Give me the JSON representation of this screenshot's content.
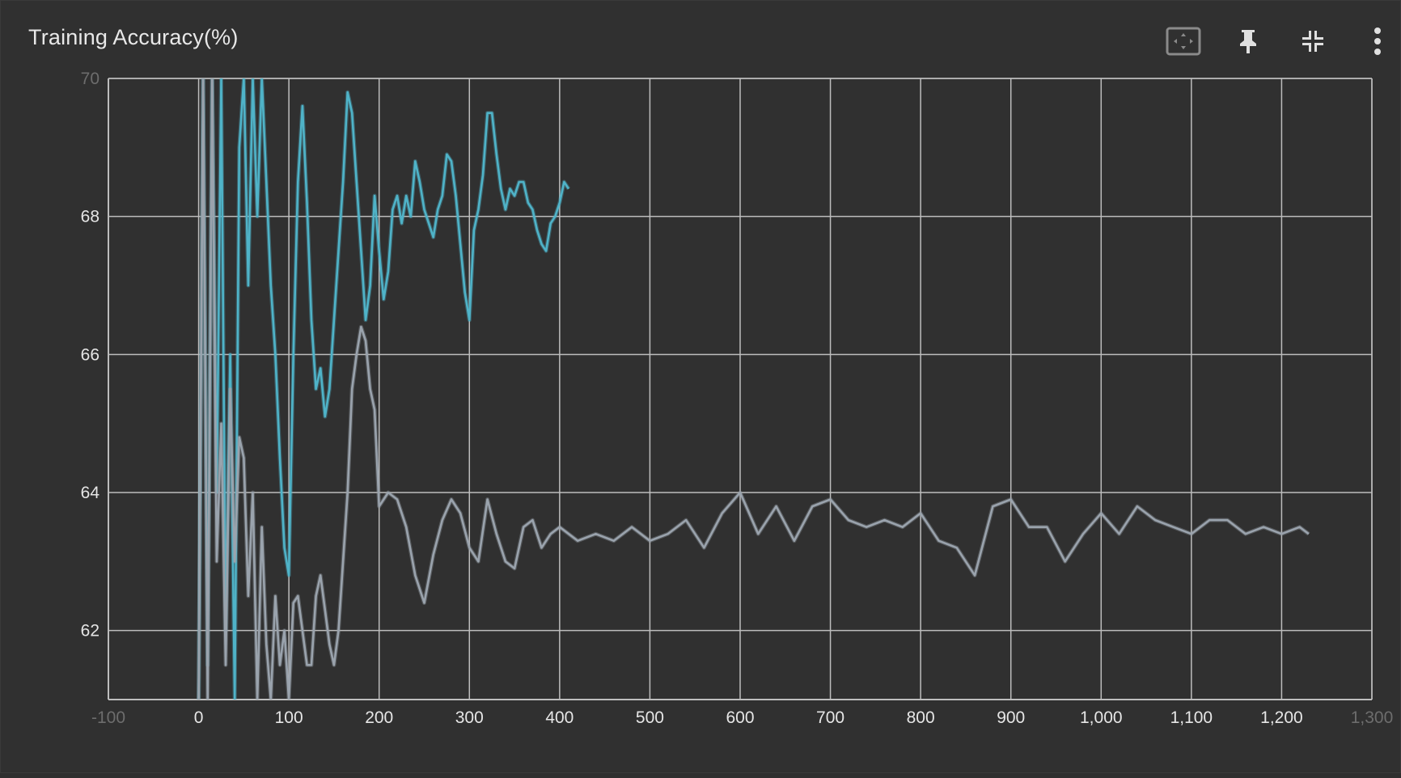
{
  "card": {
    "title": "Training Accuracy(%)",
    "toolbar": [
      {
        "name": "fit-domain-icon",
        "label": "Fit domain to data"
      },
      {
        "name": "pin-icon",
        "label": "Pin card"
      },
      {
        "name": "collapse-icon",
        "label": "Exit fullscreen"
      },
      {
        "name": "more-vert-icon",
        "label": "More actions"
      }
    ]
  },
  "colors": {
    "background": "#303030",
    "grid": "#bdbdbd",
    "series_cyan": "#4fb3c8",
    "series_gray": "#9aa3ad"
  },
  "chart_data": {
    "type": "line",
    "title": "Training Accuracy(%)",
    "xlabel": "",
    "ylabel": "",
    "xlim": [
      -100,
      1300
    ],
    "ylim": [
      61,
      70
    ],
    "grid": true,
    "x_ticks": [
      -100,
      0,
      100,
      200,
      300,
      400,
      500,
      600,
      700,
      800,
      900,
      1000,
      1100,
      1200,
      1300
    ],
    "x_tick_labels": [
      "-100",
      "0",
      "100",
      "200",
      "300",
      "400",
      "500",
      "600",
      "700",
      "800",
      "900",
      "1,000",
      "1,100",
      "1,200",
      "1,300"
    ],
    "y_ticks": [
      62,
      64,
      66,
      68,
      70
    ],
    "y_tick_labels": [
      "62",
      "64",
      "66",
      "68",
      "70"
    ],
    "series": [
      {
        "color": "#4fb3c8",
        "x": [
          0,
          5,
          10,
          15,
          20,
          25,
          30,
          35,
          40,
          45,
          50,
          55,
          60,
          65,
          70,
          75,
          80,
          85,
          90,
          95,
          100,
          105,
          110,
          115,
          120,
          125,
          130,
          135,
          140,
          145,
          150,
          155,
          160,
          165,
          170,
          175,
          180,
          185,
          190,
          195,
          200,
          205,
          210,
          215,
          220,
          225,
          230,
          235,
          240,
          245,
          250,
          255,
          260,
          265,
          270,
          275,
          280,
          285,
          290,
          295,
          300,
          305,
          310,
          315,
          320,
          325,
          330,
          335,
          340,
          345,
          350,
          355,
          360,
          365,
          370,
          375,
          380,
          385,
          390,
          395,
          400,
          405,
          410
        ],
        "values": [
          61.0,
          70.0,
          61.5,
          70.0,
          64.0,
          70.0,
          62.0,
          66.0,
          61.0,
          69.0,
          70.0,
          67.0,
          70.0,
          68.0,
          70.0,
          68.5,
          67.0,
          66.0,
          64.5,
          63.2,
          62.8,
          66.0,
          68.5,
          69.6,
          68.2,
          66.5,
          65.5,
          65.8,
          65.1,
          65.5,
          66.5,
          67.5,
          68.5,
          69.8,
          69.5,
          68.5,
          67.5,
          66.5,
          67.0,
          68.3,
          67.5,
          66.8,
          67.2,
          68.1,
          68.3,
          67.9,
          68.3,
          68.0,
          68.8,
          68.5,
          68.1,
          67.9,
          67.7,
          68.1,
          68.3,
          68.9,
          68.8,
          68.3,
          67.6,
          66.9,
          66.5,
          67.8,
          68.1,
          68.6,
          69.5,
          69.5,
          68.9,
          68.4,
          68.1,
          68.4,
          68.3,
          68.5,
          68.5,
          68.2,
          68.1,
          67.8,
          67.6,
          67.5,
          67.9,
          68.0,
          68.2,
          68.5,
          68.4
        ],
        "name": ""
      },
      {
        "color": "#9aa3ad",
        "x": [
          0,
          5,
          10,
          15,
          20,
          25,
          30,
          35,
          40,
          45,
          50,
          55,
          60,
          65,
          70,
          75,
          80,
          85,
          90,
          95,
          100,
          105,
          110,
          115,
          120,
          125,
          130,
          135,
          140,
          145,
          150,
          155,
          160,
          165,
          170,
          175,
          180,
          185,
          190,
          195,
          200,
          210,
          220,
          230,
          240,
          250,
          260,
          270,
          280,
          290,
          300,
          310,
          320,
          330,
          340,
          350,
          360,
          370,
          380,
          390,
          400,
          420,
          440,
          460,
          480,
          500,
          520,
          540,
          560,
          580,
          600,
          620,
          640,
          660,
          680,
          700,
          720,
          740,
          760,
          780,
          800,
          820,
          840,
          860,
          880,
          900,
          920,
          940,
          960,
          980,
          1000,
          1020,
          1040,
          1060,
          1080,
          1100,
          1120,
          1140,
          1160,
          1180,
          1200,
          1220,
          1230
        ],
        "values": [
          61.0,
          70.0,
          61.0,
          70.0,
          63.0,
          65.0,
          61.5,
          65.5,
          63.0,
          64.8,
          64.5,
          62.5,
          64.0,
          61.0,
          63.5,
          61.8,
          61.0,
          62.5,
          61.5,
          62.0,
          61.0,
          62.4,
          62.5,
          62.0,
          61.5,
          61.5,
          62.5,
          62.8,
          62.3,
          61.8,
          61.5,
          62.0,
          63.0,
          64.0,
          65.5,
          66.0,
          66.4,
          66.2,
          65.5,
          65.2,
          63.8,
          64.0,
          63.9,
          63.5,
          62.8,
          62.4,
          63.1,
          63.6,
          63.9,
          63.7,
          63.2,
          63.0,
          63.9,
          63.4,
          63.0,
          62.9,
          63.5,
          63.6,
          63.2,
          63.4,
          63.5,
          63.3,
          63.4,
          63.3,
          63.5,
          63.3,
          63.4,
          63.6,
          63.2,
          63.7,
          64.0,
          63.4,
          63.8,
          63.3,
          63.8,
          63.9,
          63.6,
          63.5,
          63.6,
          63.5,
          63.7,
          63.3,
          63.2,
          62.8,
          63.8,
          63.9,
          63.5,
          63.5,
          63.0,
          63.4,
          63.7,
          63.4,
          63.8,
          63.6,
          63.5,
          63.4,
          63.6,
          63.6,
          63.4,
          63.5,
          63.4,
          63.5,
          63.4
        ],
        "name": ""
      }
    ]
  }
}
